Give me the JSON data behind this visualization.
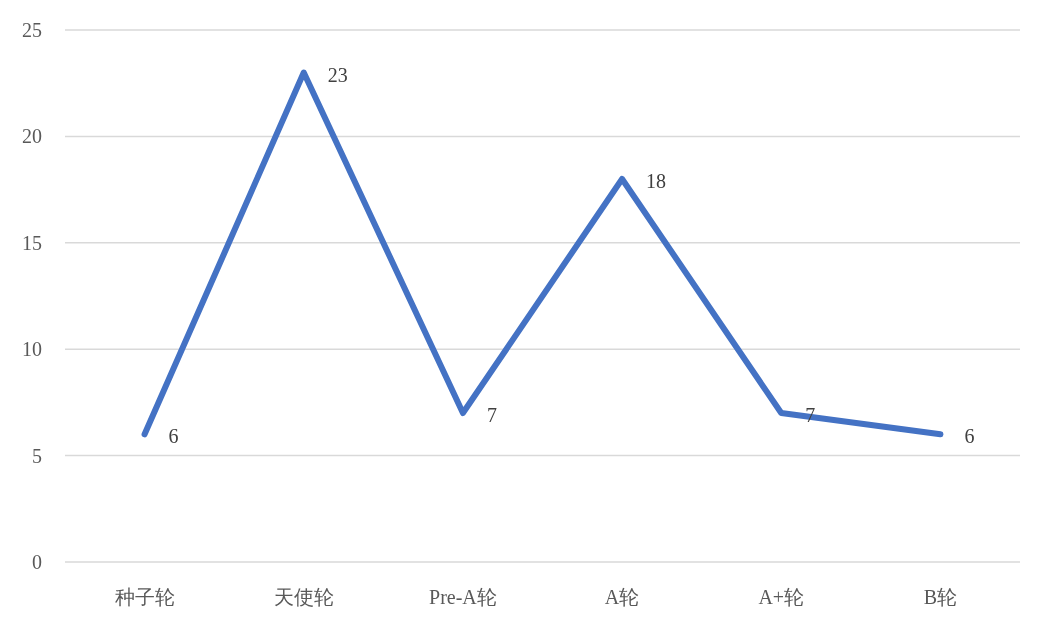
{
  "chart_data": {
    "type": "line",
    "categories": [
      "种子轮",
      "天使轮",
      "Pre-A轮",
      "A轮",
      "A+轮",
      "B轮"
    ],
    "series": [
      {
        "color": "#4472c4",
        "values": [
          6,
          23,
          7,
          18,
          7,
          6
        ]
      }
    ],
    "ylim": [
      0,
      25
    ],
    "yticks": [
      0,
      5,
      10,
      15,
      20,
      25
    ],
    "grid": "y",
    "data_labels": true
  }
}
